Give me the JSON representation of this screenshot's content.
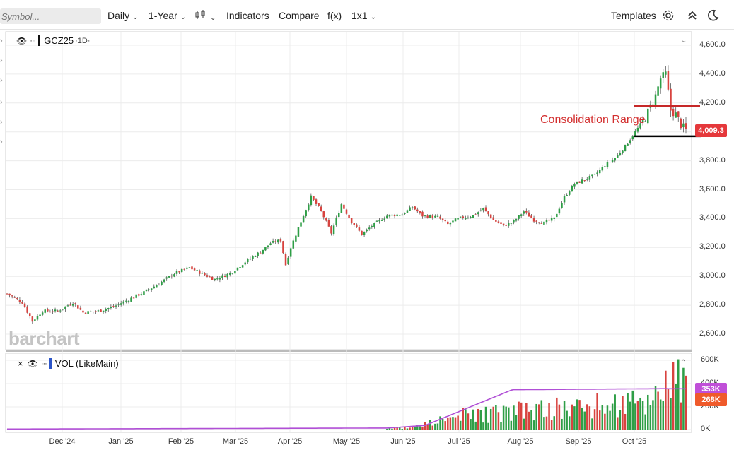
{
  "toolbar": {
    "symbol_placeholder": "Symbol...",
    "interval": "Daily",
    "range": "1-Year",
    "indicators": "Indicators",
    "compare": "Compare",
    "fx": "f(x)",
    "layout": "1x1",
    "templates": "Templates"
  },
  "main_pane": {
    "symbol": "GCZ25",
    "interval_suffix": "·1D·",
    "last_price": "4,009.3",
    "watermark": "barchart",
    "annotation": "Consolidation Range",
    "y_ticks": [
      "4,600.0",
      "4,400.0",
      "4,200.0",
      "4,000.0",
      "3,800.0",
      "3,600.0",
      "3,400.0",
      "3,200.0",
      "3,000.0",
      "2,800.0",
      "2,600.0"
    ]
  },
  "volume_pane": {
    "label": "VOL (LikeMain)",
    "y_ticks": [
      "600K",
      "400K",
      "200K",
      "0K"
    ],
    "avg_tag": "353K",
    "vol_tag": "268K"
  },
  "x_ticks": [
    "Dec '24",
    "Jan '25",
    "Feb '25",
    "Mar '25",
    "Apr '25",
    "May '25",
    "Jun '25",
    "Jul '25",
    "Aug '25",
    "Sep '25",
    "Oct '25"
  ],
  "colors": {
    "up": "#2e9e46",
    "down": "#d8433f",
    "price_tag": "#e5383b",
    "avg_tag": "#c04fd8",
    "vol_tag": "#ef5a2b",
    "avg_line": "#b04fd6",
    "resistance": "#c62828",
    "support": "#000000"
  },
  "chart_data": {
    "type": "candlestick",
    "symbol": "GCZ25",
    "x": [
      "Dec '24",
      "Jan '25",
      "Feb '25",
      "Mar '25",
      "Apr '25",
      "May '25",
      "Jun '25",
      "Jul '25",
      "Aug '25",
      "Sep '25",
      "Oct '25"
    ],
    "close_path": [
      [
        0,
        2880
      ],
      [
        6,
        2820
      ],
      [
        10,
        2690
      ],
      [
        14,
        2760
      ],
      [
        20,
        2760
      ],
      [
        26,
        2820
      ],
      [
        30,
        2750
      ],
      [
        36,
        2760
      ],
      [
        42,
        2790
      ],
      [
        48,
        2840
      ],
      [
        54,
        2890
      ],
      [
        60,
        2950
      ],
      [
        66,
        3020
      ],
      [
        72,
        3060
      ],
      [
        78,
        3010
      ],
      [
        82,
        2980
      ],
      [
        88,
        3020
      ],
      [
        94,
        3100
      ],
      [
        100,
        3170
      ],
      [
        104,
        3230
      ],
      [
        108,
        3250
      ],
      [
        110,
        3080
      ],
      [
        112,
        3200
      ],
      [
        116,
        3380
      ],
      [
        120,
        3550
      ],
      [
        124,
        3450
      ],
      [
        128,
        3300
      ],
      [
        132,
        3500
      ],
      [
        136,
        3380
      ],
      [
        140,
        3290
      ],
      [
        144,
        3350
      ],
      [
        150,
        3420
      ],
      [
        156,
        3430
      ],
      [
        160,
        3480
      ],
      [
        164,
        3420
      ],
      [
        170,
        3410
      ],
      [
        174,
        3360
      ],
      [
        178,
        3400
      ],
      [
        184,
        3420
      ],
      [
        188,
        3470
      ],
      [
        192,
        3390
      ],
      [
        196,
        3350
      ],
      [
        200,
        3380
      ],
      [
        204,
        3450
      ],
      [
        208,
        3390
      ],
      [
        212,
        3370
      ],
      [
        216,
        3400
      ],
      [
        220,
        3550
      ],
      [
        224,
        3640
      ],
      [
        228,
        3670
      ],
      [
        232,
        3700
      ],
      [
        236,
        3770
      ],
      [
        240,
        3820
      ],
      [
        244,
        3900
      ],
      [
        248,
        4000
      ],
      [
        252,
        4100
      ],
      [
        256,
        4250
      ],
      [
        258,
        4370
      ],
      [
        260,
        4400
      ],
      [
        262,
        4150
      ],
      [
        264,
        4120
      ],
      [
        266,
        4050
      ],
      [
        268,
        4009
      ]
    ],
    "consolidation_high": 4180,
    "consolidation_low": 3970,
    "volume": {
      "avg_last": 353000,
      "last": 268000,
      "ylim": [
        0,
        600000
      ]
    },
    "ylim": [
      2550,
      4650
    ]
  }
}
